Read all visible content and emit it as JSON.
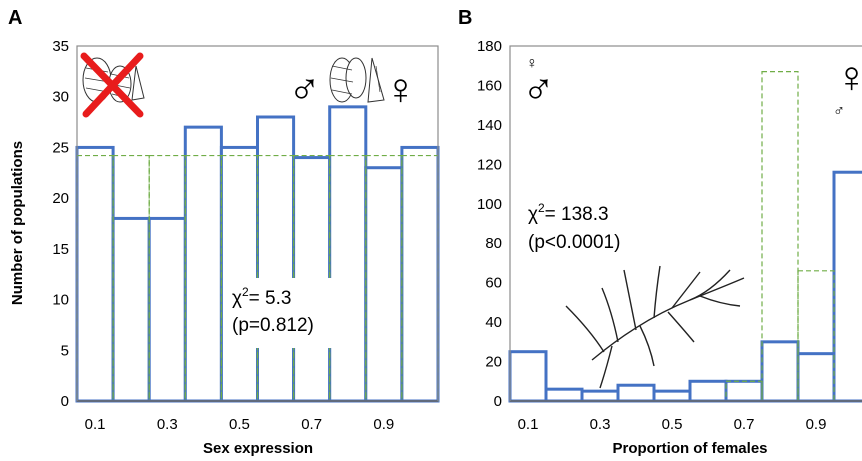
{
  "chart_data": [
    {
      "type": "bar",
      "panel_label": "A",
      "title": "",
      "xlabel": "Sex expression",
      "ylabel": "Number of populations",
      "ylim": [
        0,
        35
      ],
      "yticks": [
        "0",
        "5",
        "10",
        "15",
        "20",
        "25",
        "30",
        "35"
      ],
      "xticks": [
        "0.1",
        "0.3",
        "0.5",
        "0.7",
        "0.9"
      ],
      "categories": [
        "0.1",
        "0.2",
        "0.3",
        "0.4",
        "0.5",
        "0.6",
        "0.7",
        "0.8",
        "0.9",
        "1.0"
      ],
      "series": [
        {
          "values": [
            25,
            18,
            18,
            27,
            25,
            28,
            24,
            29,
            23,
            25
          ],
          "style": "solid",
          "color": "#4472c4"
        },
        {
          "values": [
            24.2,
            24.2,
            24.2,
            24.2,
            24.2,
            24.2,
            24.2,
            24.2,
            24.2,
            24.2
          ],
          "style": "dashed",
          "color": "#70ad47"
        }
      ],
      "annotation": {
        "stat": "χ",
        "sup": "2",
        "value": "= 5.3",
        "p": "(p=0.812)"
      },
      "symbols": {
        "left_male": "",
        "left_female": "",
        "right_male": "♂",
        "right_female": "♀"
      }
    },
    {
      "type": "bar",
      "panel_label": "B",
      "title": "",
      "xlabel": "Proportion of females",
      "ylabel": "",
      "ylim": [
        0,
        180
      ],
      "yticks": [
        "0",
        "20",
        "40",
        "60",
        "80",
        "100",
        "120",
        "140",
        "160",
        "180"
      ],
      "xticks": [
        "0.1",
        "0.3",
        "0.5",
        "0.7",
        "0.9"
      ],
      "categories": [
        "0.1",
        "0.2",
        "0.3",
        "0.4",
        "0.5",
        "0.6",
        "0.7",
        "0.8",
        "0.9",
        "1.0"
      ],
      "series": [
        {
          "values": [
            25,
            6,
            5,
            8,
            5,
            10,
            10,
            30,
            24,
            116
          ],
          "style": "solid",
          "color": "#4472c4"
        },
        {
          "values": [
            0,
            0,
            0,
            0,
            0,
            0,
            10,
            167,
            66,
            0
          ],
          "style": "dashed",
          "color": "#70ad47"
        }
      ],
      "annotation": {
        "stat": "χ",
        "sup": "2",
        "value": "= 138.3",
        "p": "(p<0.0001)"
      },
      "symbols": {
        "left_male": "♂",
        "left_female": "♀",
        "right_male": "♂",
        "right_female": "♀"
      }
    }
  ]
}
